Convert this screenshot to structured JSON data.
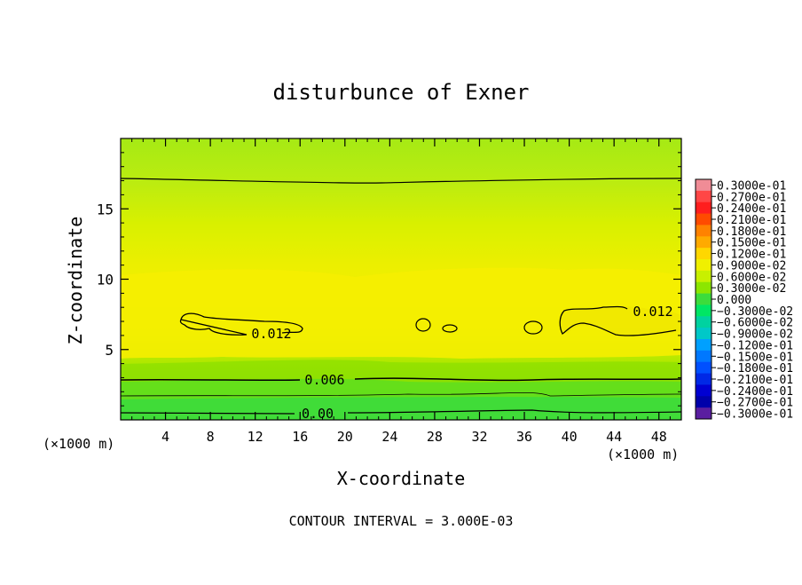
{
  "chart_data": {
    "type": "contour",
    "title": "disturbunce of Exner",
    "xlabel": "X-coordinate",
    "ylabel": "Z-coordinate",
    "x_unit_left": "(×1000 m)",
    "x_unit_right": "(×1000 m)",
    "footer": "CONTOUR INTERVAL = 3.000E-03",
    "xlim": [
      0,
      50
    ],
    "ylim": [
      0,
      20
    ],
    "x_ticks": [
      4,
      8,
      12,
      16,
      20,
      24,
      28,
      32,
      36,
      40,
      44,
      48
    ],
    "y_ticks": [
      5,
      10,
      15
    ],
    "contour_labels": [
      "0.012",
      "0.012",
      "0.006",
      "0.00"
    ],
    "colorbar_labels": [
      "0.3000e-01",
      "0.2700e-01",
      "0.2400e-01",
      "0.2100e-01",
      "0.1800e-01",
      "0.1500e-01",
      "0.1200e-01",
      "0.9000e-02",
      "0.6000e-02",
      "0.3000e-02",
      "0.000",
      "−0.3000e-02",
      "−0.6000e-02",
      "−0.9000e-02",
      "−0.1200e-01",
      "−0.1500e-01",
      "−0.1800e-01",
      "−0.2100e-01",
      "−0.2400e-01",
      "−0.2700e-01",
      "−0.3000e-01"
    ],
    "colorbar_colors": [
      "#f08c96",
      "#ff4646",
      "#ff1e1e",
      "#ff4b00",
      "#ff8200",
      "#ffaa00",
      "#ffd700",
      "#f0f000",
      "#c8f000",
      "#8ce600",
      "#3cdc3c",
      "#00e664",
      "#00d2a0",
      "#00c8c8",
      "#00a0ff",
      "#0078ff",
      "#0050ff",
      "#0028e6",
      "#0000d2",
      "#0000aa",
      "#5a1ea0"
    ]
  }
}
